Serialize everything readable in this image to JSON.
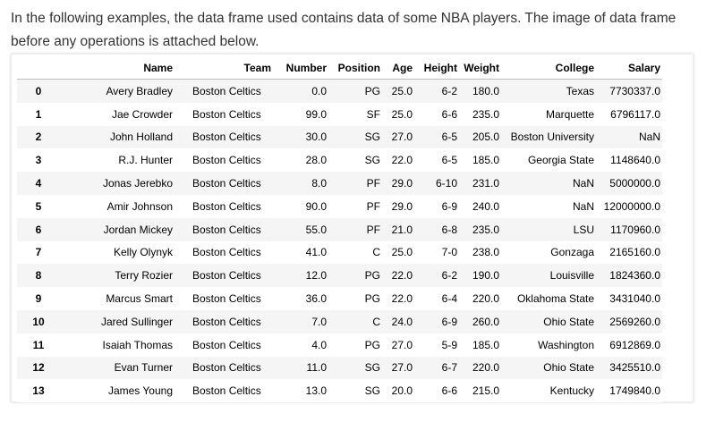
{
  "intro": "In the following examples, the data frame used contains data of some NBA players. The image of data frame before any operations is attached below.",
  "columns": [
    "",
    "Name",
    "Team",
    "Number",
    "Position",
    "Age",
    "Height",
    "Weight",
    "College",
    "Salary"
  ],
  "rows": [
    [
      "0",
      "Avery Bradley",
      "Boston Celtics",
      "0.0",
      "PG",
      "25.0",
      "6-2",
      "180.0",
      "Texas",
      "7730337.0"
    ],
    [
      "1",
      "Jae Crowder",
      "Boston Celtics",
      "99.0",
      "SF",
      "25.0",
      "6-6",
      "235.0",
      "Marquette",
      "6796117.0"
    ],
    [
      "2",
      "John Holland",
      "Boston Celtics",
      "30.0",
      "SG",
      "27.0",
      "6-5",
      "205.0",
      "Boston University",
      "NaN"
    ],
    [
      "3",
      "R.J. Hunter",
      "Boston Celtics",
      "28.0",
      "SG",
      "22.0",
      "6-5",
      "185.0",
      "Georgia State",
      "1148640.0"
    ],
    [
      "4",
      "Jonas Jerebko",
      "Boston Celtics",
      "8.0",
      "PF",
      "29.0",
      "6-10",
      "231.0",
      "NaN",
      "5000000.0"
    ],
    [
      "5",
      "Amir Johnson",
      "Boston Celtics",
      "90.0",
      "PF",
      "29.0",
      "6-9",
      "240.0",
      "NaN",
      "12000000.0"
    ],
    [
      "6",
      "Jordan Mickey",
      "Boston Celtics",
      "55.0",
      "PF",
      "21.0",
      "6-8",
      "235.0",
      "LSU",
      "1170960.0"
    ],
    [
      "7",
      "Kelly Olynyk",
      "Boston Celtics",
      "41.0",
      "C",
      "25.0",
      "7-0",
      "238.0",
      "Gonzaga",
      "2165160.0"
    ],
    [
      "8",
      "Terry Rozier",
      "Boston Celtics",
      "12.0",
      "PG",
      "22.0",
      "6-2",
      "190.0",
      "Louisville",
      "1824360.0"
    ],
    [
      "9",
      "Marcus Smart",
      "Boston Celtics",
      "36.0",
      "PG",
      "22.0",
      "6-4",
      "220.0",
      "Oklahoma State",
      "3431040.0"
    ],
    [
      "10",
      "Jared Sullinger",
      "Boston Celtics",
      "7.0",
      "C",
      "24.0",
      "6-9",
      "260.0",
      "Ohio State",
      "2569260.0"
    ],
    [
      "11",
      "Isaiah Thomas",
      "Boston Celtics",
      "4.0",
      "PG",
      "27.0",
      "5-9",
      "185.0",
      "Washington",
      "6912869.0"
    ],
    [
      "12",
      "Evan Turner",
      "Boston Celtics",
      "11.0",
      "SG",
      "27.0",
      "6-7",
      "220.0",
      "Ohio State",
      "3425510.0"
    ],
    [
      "13",
      "James Young",
      "Boston Celtics",
      "13.0",
      "SG",
      "20.0",
      "6-6",
      "215.0",
      "Kentucky",
      "1749840.0"
    ]
  ]
}
